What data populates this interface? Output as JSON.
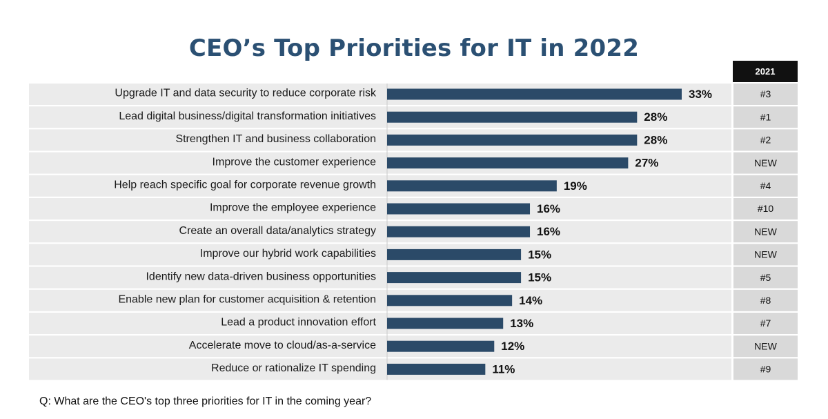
{
  "title": "CEO’s Top Priorities for IT in 2022",
  "rank_header": "2021",
  "footnote": "Q: What are the CEO's top three priorities for IT in the coming year?",
  "colors": {
    "bar": "#2b4a68",
    "row_bg": "#ebebeb",
    "rank_bg": "#d9d9d9",
    "title": "#2b5073"
  },
  "chart_data": {
    "type": "bar",
    "orientation": "horizontal",
    "title": "CEO’s Top Priorities for IT in 2022",
    "xlabel": "",
    "ylabel": "",
    "xlim": [
      0,
      33
    ],
    "unit": "%",
    "categories": [
      "Upgrade IT and data security to reduce corporate risk",
      "Lead digital business/digital transformation initiatives",
      "Strengthen IT and business collaboration",
      "Improve the customer experience",
      "Help reach specific goal for corporate revenue growth",
      "Improve the employee experience",
      "Create an overall data/analytics strategy",
      "Improve our hybrid work capabilities",
      "Identify new data-driven business opportunities",
      "Enable new plan for customer acquisition & retention",
      "Lead a product innovation effort",
      "Accelerate move to cloud/as-a-service",
      "Reduce or rationalize IT spending"
    ],
    "values": [
      33,
      28,
      28,
      27,
      19,
      16,
      16,
      15,
      15,
      14,
      13,
      12,
      11
    ],
    "labels": [
      "33%",
      "28%",
      "28%",
      "27%",
      "19%",
      "16%",
      "16%",
      "15%",
      "15%",
      "14%",
      "13%",
      "12%",
      "11%"
    ],
    "rank_2021": [
      "#3",
      "#1",
      "#2",
      "NEW",
      "#4",
      "#10",
      "NEW",
      "NEW",
      "#5",
      "#8",
      "#7",
      "NEW",
      "#9"
    ]
  }
}
